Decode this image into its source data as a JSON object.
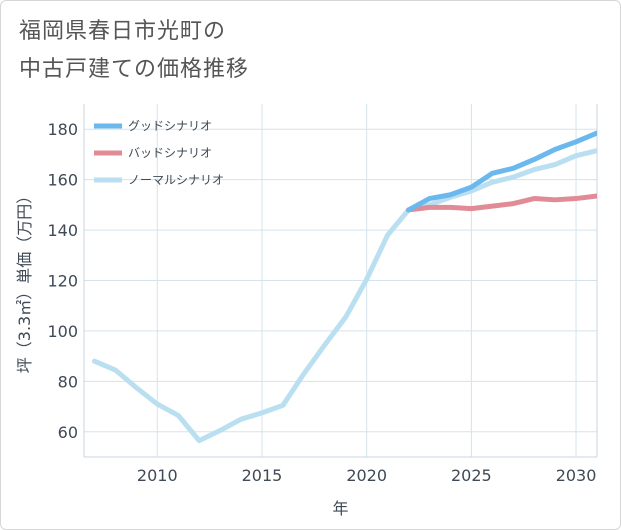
{
  "title": {
    "line1": "福岡県春日市光町の",
    "line2": "中古戸建ての価格推移"
  },
  "chart_data": {
    "type": "line",
    "title": "福岡県春日市光町の中古戸建ての価格推移",
    "xlabel": "年",
    "ylabel": "坪（3.3㎡）単価（万円）",
    "xlim": [
      2006.5,
      2031
    ],
    "ylim": [
      50,
      190
    ],
    "x_ticks": [
      2010,
      2015,
      2020,
      2025,
      2030
    ],
    "y_ticks": [
      60,
      80,
      100,
      120,
      140,
      160,
      180
    ],
    "grid": true,
    "legend_position": "top-left",
    "series": [
      {
        "name": "グッドシナリオ",
        "color": "#6bb8ee",
        "x": [
          2022,
          2023,
          2024,
          2025,
          2026,
          2027,
          2028,
          2029,
          2030,
          2031
        ],
        "values": [
          148,
          152.5,
          154,
          157,
          162.5,
          164.5,
          168,
          172,
          175,
          178.5
        ]
      },
      {
        "name": "バッドシナリオ",
        "color": "#e08b95",
        "x": [
          2022,
          2023,
          2024,
          2025,
          2026,
          2027,
          2028,
          2029,
          2030,
          2031
        ],
        "values": [
          148,
          149,
          149,
          148.5,
          149.5,
          150.5,
          152.5,
          152,
          152.5,
          153.5
        ]
      },
      {
        "name": "ノーマルシナリオ",
        "color": "#b9dff0",
        "x": [
          2007,
          2008,
          2009,
          2010,
          2011,
          2012,
          2013,
          2014,
          2015,
          2016,
          2017,
          2018,
          2019,
          2020,
          2021,
          2022,
          2023,
          2024,
          2025,
          2026,
          2027,
          2028,
          2029,
          2030,
          2031
        ],
        "values": [
          88,
          84.5,
          77.5,
          71,
          66.5,
          56.5,
          60.5,
          65,
          67.5,
          70.5,
          83,
          94.5,
          105.5,
          120.5,
          138,
          148,
          150,
          153,
          155.5,
          159,
          161,
          164,
          166,
          169.5,
          171.5
        ]
      }
    ]
  }
}
